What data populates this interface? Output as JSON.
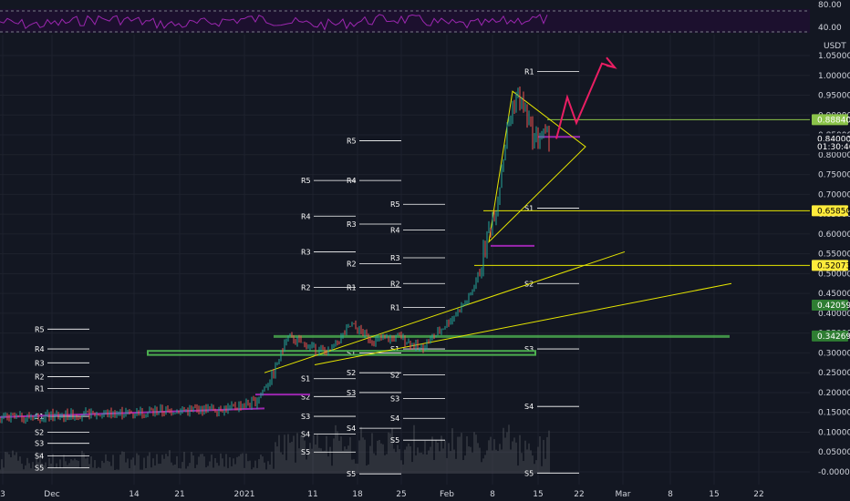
{
  "chart_data": {
    "type": "candlestick",
    "quote_currency": "USDT",
    "x_ticks": [
      "3",
      "Dec",
      "14",
      "21",
      "2021",
      "11",
      "18",
      "25",
      "Feb",
      "8",
      "15",
      "22",
      "Mar",
      "8",
      "15",
      "22"
    ],
    "y_ticks": [
      "1.05000",
      "1.00000",
      "0.95000",
      "0.90000",
      "0.85000",
      "0.80000",
      "0.75000",
      "0.70000",
      "0.65000",
      "0.60000",
      "0.55000",
      "0.50000",
      "0.45000",
      "0.40000",
      "0.35000",
      "0.30000",
      "0.25000",
      "0.20000",
      "0.15000",
      "0.10000",
      "0.05000",
      "-0.00000"
    ],
    "ylim": [
      -0.02,
      1.08
    ],
    "price_tags": [
      {
        "label": "0.88840",
        "value": 0.8884,
        "color": "#8bc34a",
        "text_color": "#ffffff"
      },
      {
        "label": "0.84000",
        "value": 0.84,
        "color": "#131722",
        "text_color": "#ffffff"
      },
      {
        "label": "01:30:46",
        "value": 0.82,
        "color": "#131722",
        "text_color": "#ffffff"
      },
      {
        "label": "0.65850",
        "value": 0.6585,
        "color": "#ffeb3b",
        "text_color": "#000000"
      },
      {
        "label": "0.52073",
        "value": 0.5207,
        "color": "#ffeb3b",
        "text_color": "#000000"
      },
      {
        "label": "0.42059",
        "value": 0.4206,
        "color": "#2e7d32",
        "text_color": "#ffffff"
      },
      {
        "label": "0.34269",
        "value": 0.3427,
        "color": "#2e7d32",
        "text_color": "#ffffff"
      }
    ],
    "rsi": {
      "levels": [
        "80.00",
        "40.00"
      ],
      "upper": 80,
      "lower": 40
    },
    "pivot_labels": [
      "R1",
      "R2",
      "R3",
      "R4",
      "R5",
      "S1",
      "S2",
      "S3",
      "S4",
      "S5"
    ],
    "colors": {
      "up": "#26a69a",
      "down": "#ef5350",
      "accent": "#9c27b0",
      "trend": "#e6e600",
      "zone": "#4caf50",
      "arrow": "#e91e63"
    }
  }
}
